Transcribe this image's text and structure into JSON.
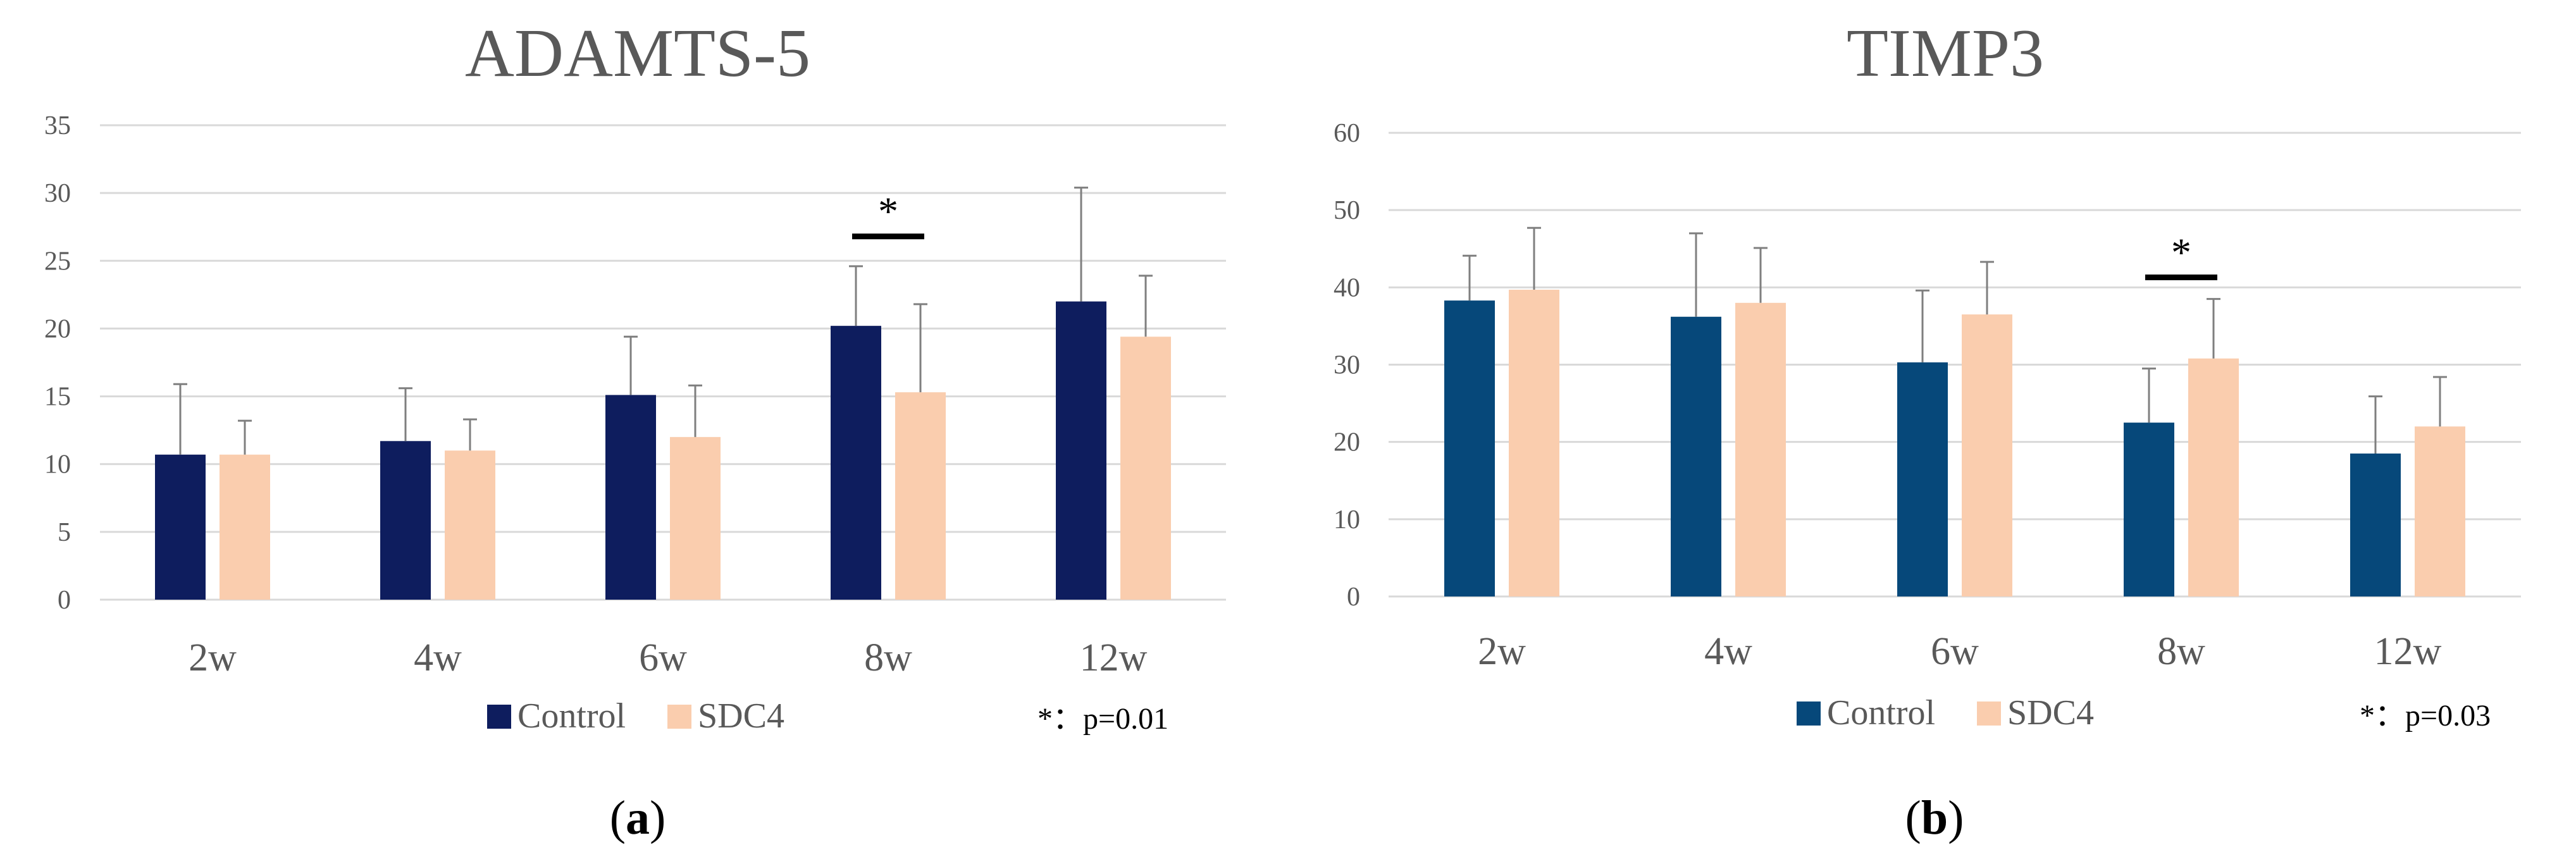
{
  "figure": {
    "panels": [
      {
        "caption_open": "(",
        "caption_letter": "a",
        "caption_close": ")"
      },
      {
        "caption_open": "(",
        "caption_letter": "b",
        "caption_close": ")"
      }
    ]
  },
  "colors": {
    "sdc4": "#FACDAE",
    "grid": "#D9D9D9",
    "axis_text": "#595959",
    "error_bar": "#7F7F7F",
    "sig": "#000000"
  },
  "chart_data": [
    {
      "type": "bar",
      "title": "ADAMTS-5",
      "xlabel": "",
      "ylabel": "",
      "categories": [
        "2w",
        "4w",
        "6w",
        "8w",
        "12w"
      ],
      "ylim": [
        0,
        35
      ],
      "yticks": [
        0,
        5,
        10,
        15,
        20,
        25,
        30,
        35
      ],
      "grid": true,
      "series": [
        {
          "name": "Control",
          "color": "#0E1D5E",
          "values": [
            10.7,
            11.7,
            15.1,
            20.2,
            22.0
          ],
          "errors": [
            5.2,
            3.9,
            4.3,
            4.4,
            8.4
          ]
        },
        {
          "name": "SDC4",
          "color": "#FACDAE",
          "values": [
            10.7,
            11.0,
            12.0,
            15.3,
            19.4
          ],
          "errors": [
            2.5,
            2.3,
            3.8,
            6.5,
            4.5
          ]
        }
      ],
      "significance": [
        {
          "category": "8w",
          "symbol": "*",
          "height": 26.8
        }
      ],
      "note": "*：p=0.01",
      "legend": "bottom"
    },
    {
      "type": "bar",
      "title": "TIMP3",
      "xlabel": "",
      "ylabel": "",
      "categories": [
        "2w",
        "4w",
        "6w",
        "8w",
        "12w"
      ],
      "ylim": [
        0,
        60
      ],
      "yticks": [
        0,
        10,
        20,
        30,
        40,
        50,
        60
      ],
      "grid": true,
      "series": [
        {
          "name": "Control",
          "color": "#06487A",
          "values": [
            38.3,
            36.2,
            30.3,
            22.5,
            18.5
          ],
          "errors": [
            5.8,
            10.8,
            9.3,
            7.0,
            7.4
          ]
        },
        {
          "name": "SDC4",
          "color": "#FACDAE",
          "values": [
            39.7,
            38.0,
            36.5,
            30.8,
            22.0
          ],
          "errors": [
            8.0,
            7.1,
            6.8,
            7.7,
            6.4
          ]
        }
      ],
      "significance": [
        {
          "category": "8w",
          "symbol": "*",
          "height": 41.3
        }
      ],
      "note": "*：p=0.03",
      "legend": "bottom"
    }
  ]
}
